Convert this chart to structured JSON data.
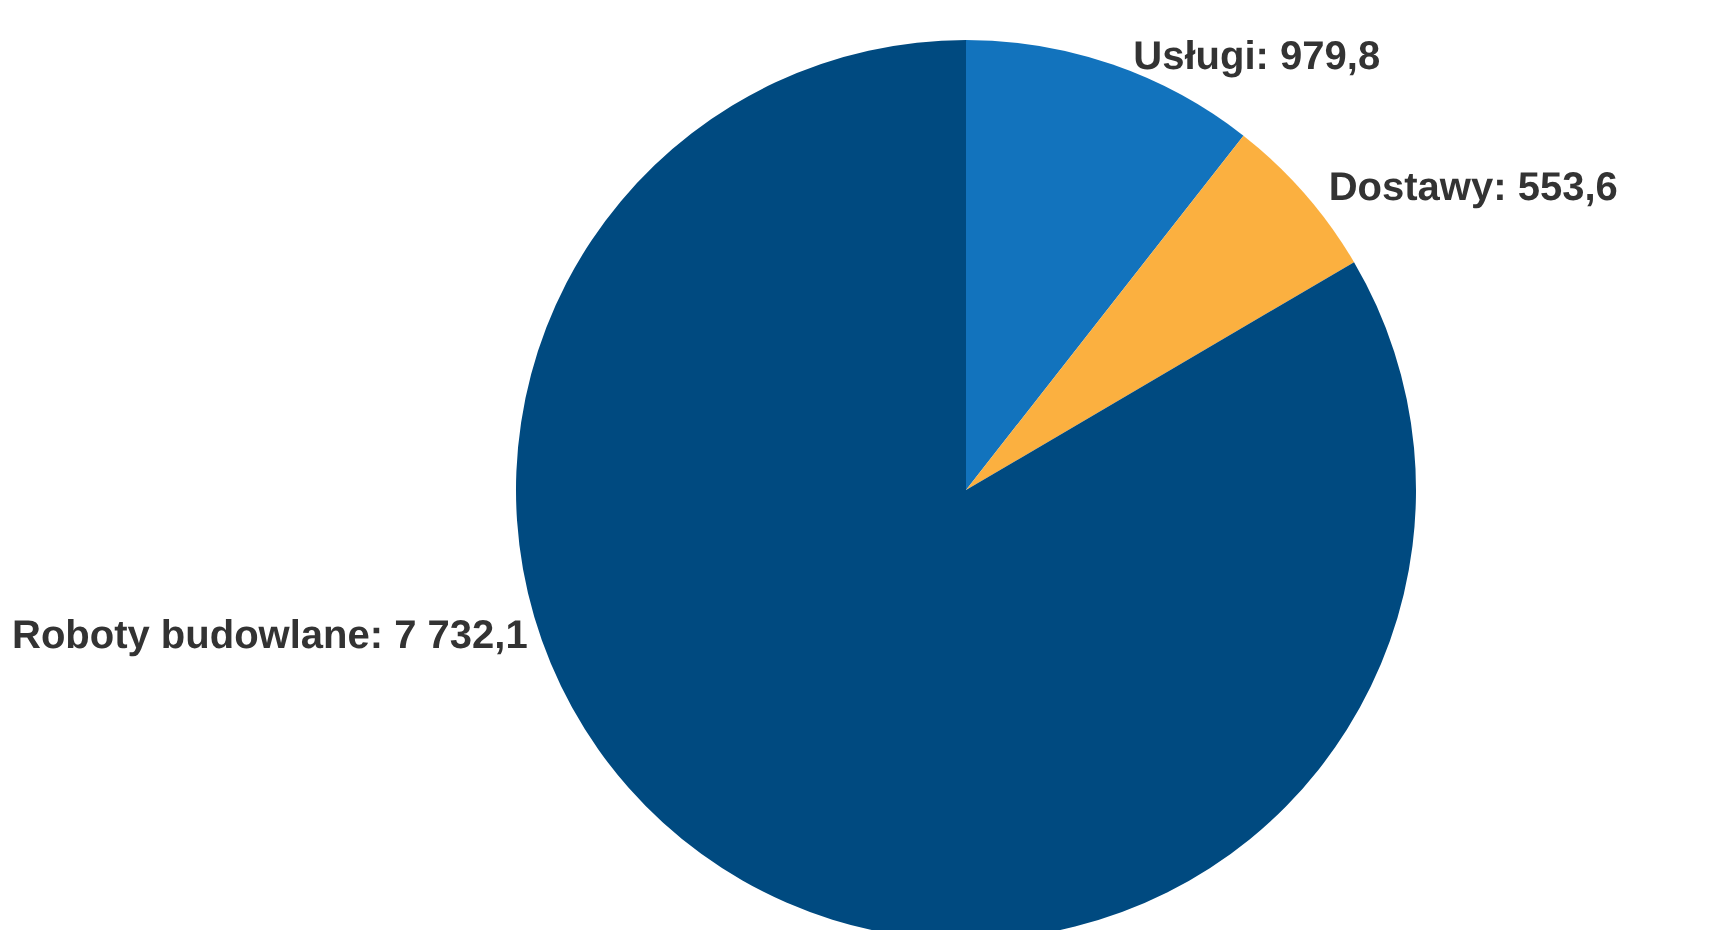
{
  "chart_data": {
    "type": "pie",
    "categories": [
      "Usługi",
      "Dostawy",
      "Roboty budowlane"
    ],
    "values": [
      979.8,
      553.6,
      7732.1
    ],
    "value_labels": [
      "979,8",
      "553,6",
      "7 732,1"
    ],
    "colors": [
      "#1273bd",
      "#fbb040",
      "#004a80"
    ],
    "legend": false
  }
}
